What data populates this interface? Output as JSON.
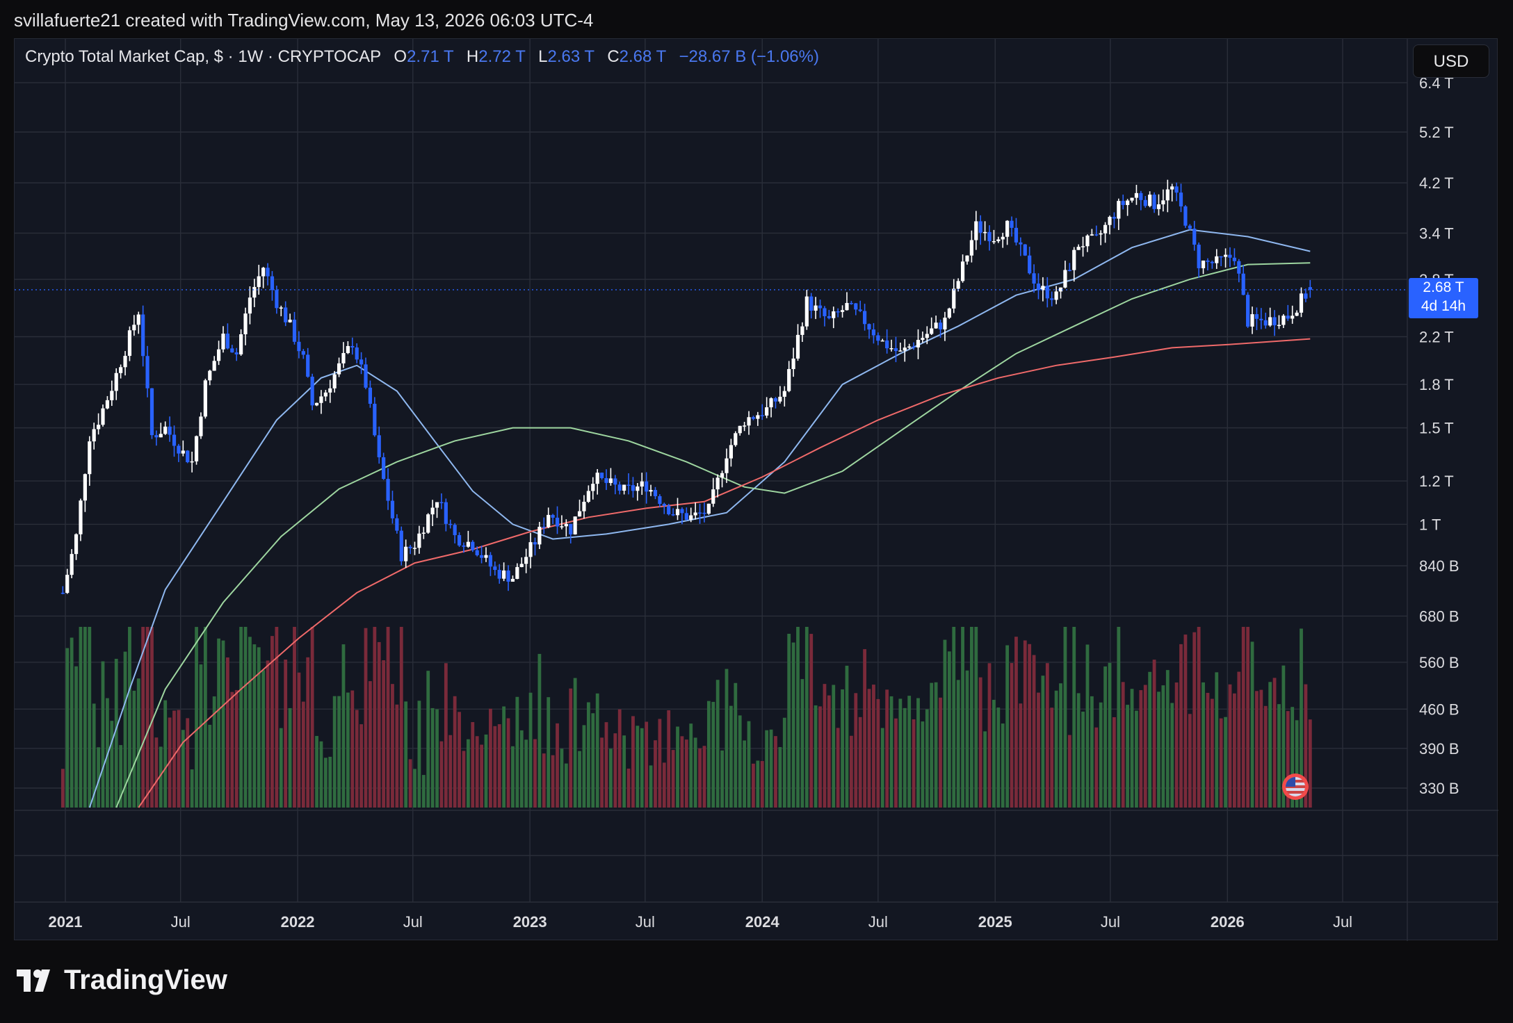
{
  "header": {
    "credit": "svillafuerte21 created with TradingView.com, May 13, 2026 06:03 UTC-4"
  },
  "legend": {
    "symbol": "Crypto Total Market Cap, $ · 1W · CRYPTOCAP",
    "open_label": "O",
    "open": "2.71 T",
    "high_label": "H",
    "high": "2.72 T",
    "low_label": "L",
    "low": "2.63 T",
    "close_label": "C",
    "close": "2.68 T",
    "change": "−28.67 B (−1.06%)"
  },
  "currency": "USD",
  "price_tag": {
    "value": "2.68 T",
    "countdown": "4d 14h"
  },
  "footer": {
    "brand": "TradingView"
  },
  "colors": {
    "up": "#ffffff",
    "down": "#2962ff",
    "ma_blue": "#8fb8f0",
    "ma_green": "#9ed6a0",
    "ma_red": "#f06a6a",
    "vol_up": "#2f6b3f",
    "vol_down": "#7a2a3a"
  },
  "chart_data": {
    "type": "candlestick",
    "interval": "1W",
    "y_scale": "log",
    "y_ticks": [
      "330 B",
      "390 B",
      "460 B",
      "560 B",
      "680 B",
      "840 B",
      "1 T",
      "1.2 T",
      "1.5 T",
      "1.8 T",
      "2.2 T",
      "2.8 T",
      "3.4 T",
      "4.2 T",
      "5.2 T",
      "6.4 T"
    ],
    "x_ticks": [
      "2021",
      "Jul",
      "2022",
      "Jul",
      "2023",
      "Jul",
      "2024",
      "Jul",
      "2025",
      "Jul",
      "2026",
      "Jul"
    ],
    "last_price": 2.68,
    "close_path": [
      [
        "2020-12-28",
        0.75
      ],
      [
        "2021-01-18",
        0.95
      ],
      [
        "2021-02-08",
        1.45
      ],
      [
        "2021-02-22",
        1.55
      ],
      [
        "2021-03-15",
        1.78
      ],
      [
        "2021-04-12",
        2.2
      ],
      [
        "2021-04-26",
        2.45
      ],
      [
        "2021-05-17",
        1.45
      ],
      [
        "2021-06-07",
        1.5
      ],
      [
        "2021-07-05",
        1.35
      ],
      [
        "2021-07-19",
        1.3
      ],
      [
        "2021-08-09",
        1.8
      ],
      [
        "2021-09-06",
        2.2
      ],
      [
        "2021-09-27",
        2.05
      ],
      [
        "2021-10-18",
        2.6
      ],
      [
        "2021-11-08",
        2.95
      ],
      [
        "2021-11-29",
        2.55
      ],
      [
        "2021-12-20",
        2.3
      ],
      [
        "2022-01-10",
        2.0
      ],
      [
        "2022-01-24",
        1.65
      ],
      [
        "2022-02-14",
        1.75
      ],
      [
        "2022-03-28",
        2.15
      ],
      [
        "2022-04-18",
        1.8
      ],
      [
        "2022-05-09",
        1.3
      ],
      [
        "2022-06-13",
        0.88
      ],
      [
        "2022-07-04",
        0.92
      ],
      [
        "2022-08-08",
        1.12
      ],
      [
        "2022-09-05",
        0.95
      ],
      [
        "2022-10-03",
        0.92
      ],
      [
        "2022-11-07",
        0.82
      ],
      [
        "2022-12-05",
        0.8
      ],
      [
        "2023-01-09",
        0.93
      ],
      [
        "2023-01-30",
        1.05
      ],
      [
        "2023-03-06",
        0.98
      ],
      [
        "2023-04-10",
        1.22
      ],
      [
        "2023-05-29",
        1.15
      ],
      [
        "2023-07-03",
        1.18
      ],
      [
        "2023-08-14",
        1.05
      ],
      [
        "2023-09-11",
        1.03
      ],
      [
        "2023-10-09",
        1.06
      ],
      [
        "2023-11-06",
        1.35
      ],
      [
        "2023-12-04",
        1.55
      ],
      [
        "2024-01-08",
        1.62
      ],
      [
        "2024-02-05",
        1.75
      ],
      [
        "2024-03-11",
        2.55
      ],
      [
        "2024-04-15",
        2.35
      ],
      [
        "2024-05-13",
        2.5
      ],
      [
        "2024-06-10",
        2.35
      ],
      [
        "2024-07-08",
        2.15
      ],
      [
        "2024-08-05",
        2.05
      ],
      [
        "2024-09-09",
        2.2
      ],
      [
        "2024-10-14",
        2.35
      ],
      [
        "2024-11-11",
        2.95
      ],
      [
        "2024-12-02",
        3.5
      ],
      [
        "2024-12-30",
        3.35
      ],
      [
        "2025-01-20",
        3.5
      ],
      [
        "2025-02-10",
        3.15
      ],
      [
        "2025-03-10",
        2.7
      ],
      [
        "2025-04-07",
        2.6
      ],
      [
        "2025-05-12",
        3.25
      ],
      [
        "2025-06-09",
        3.3
      ],
      [
        "2025-07-14",
        3.8
      ],
      [
        "2025-08-11",
        4.0
      ],
      [
        "2025-09-08",
        3.85
      ],
      [
        "2025-10-06",
        4.1
      ],
      [
        "2025-10-27",
        3.6
      ],
      [
        "2025-11-17",
        3.0
      ],
      [
        "2025-12-15",
        3.0
      ],
      [
        "2026-01-12",
        3.1
      ],
      [
        "2026-02-02",
        2.35
      ],
      [
        "2026-03-02",
        2.35
      ],
      [
        "2026-04-06",
        2.4
      ],
      [
        "2026-05-11",
        2.68
      ]
    ],
    "series": [
      {
        "name": "",
        "type": "ma",
        "color": "#8fb8f0",
        "points": [
          [
            "2021-02-08",
            0.3
          ],
          [
            "2021-04-12",
            0.5
          ],
          [
            "2021-06-07",
            0.76
          ],
          [
            "2021-09-06",
            1.1
          ],
          [
            "2021-11-29",
            1.55
          ],
          [
            "2022-02-07",
            1.85
          ],
          [
            "2022-04-04",
            1.95
          ],
          [
            "2022-06-06",
            1.75
          ],
          [
            "2022-08-08",
            1.4
          ],
          [
            "2022-10-03",
            1.15
          ],
          [
            "2022-12-05",
            1.0
          ],
          [
            "2023-02-06",
            0.94
          ],
          [
            "2023-05-01",
            0.96
          ],
          [
            "2023-08-07",
            1.0
          ],
          [
            "2023-11-06",
            1.05
          ],
          [
            "2024-02-05",
            1.3
          ],
          [
            "2024-05-06",
            1.8
          ],
          [
            "2024-08-05",
            2.05
          ],
          [
            "2024-11-04",
            2.3
          ],
          [
            "2025-02-03",
            2.62
          ],
          [
            "2025-05-05",
            2.8
          ],
          [
            "2025-08-04",
            3.2
          ],
          [
            "2025-11-03",
            3.45
          ],
          [
            "2026-02-02",
            3.35
          ],
          [
            "2026-05-11",
            3.15
          ]
        ]
      },
      {
        "name": "",
        "type": "ma",
        "color": "#9ed6a0",
        "points": [
          [
            "2021-03-22",
            0.3
          ],
          [
            "2021-06-07",
            0.5
          ],
          [
            "2021-09-06",
            0.72
          ],
          [
            "2021-12-06",
            0.95
          ],
          [
            "2022-03-07",
            1.16
          ],
          [
            "2022-06-06",
            1.3
          ],
          [
            "2022-09-05",
            1.42
          ],
          [
            "2022-12-05",
            1.5
          ],
          [
            "2023-03-06",
            1.5
          ],
          [
            "2023-06-05",
            1.42
          ],
          [
            "2023-09-04",
            1.3
          ],
          [
            "2023-12-04",
            1.17
          ],
          [
            "2024-02-05",
            1.14
          ],
          [
            "2024-05-06",
            1.25
          ],
          [
            "2024-08-05",
            1.48
          ],
          [
            "2024-11-04",
            1.75
          ],
          [
            "2025-02-03",
            2.05
          ],
          [
            "2025-05-05",
            2.3
          ],
          [
            "2025-08-04",
            2.58
          ],
          [
            "2025-11-03",
            2.8
          ],
          [
            "2026-02-02",
            2.98
          ],
          [
            "2026-05-11",
            3.0
          ]
        ]
      },
      {
        "name": "",
        "type": "ma",
        "color": "#f06a6a",
        "points": [
          [
            "2021-04-26",
            0.3
          ],
          [
            "2021-07-05",
            0.4
          ],
          [
            "2021-10-04",
            0.5
          ],
          [
            "2022-01-03",
            0.62
          ],
          [
            "2022-04-04",
            0.75
          ],
          [
            "2022-07-04",
            0.85
          ],
          [
            "2022-10-03",
            0.9
          ],
          [
            "2023-01-02",
            0.97
          ],
          [
            "2023-04-03",
            1.03
          ],
          [
            "2023-07-03",
            1.07
          ],
          [
            "2023-10-02",
            1.1
          ],
          [
            "2024-01-01",
            1.22
          ],
          [
            "2024-04-01",
            1.38
          ],
          [
            "2024-07-01",
            1.55
          ],
          [
            "2024-10-07",
            1.72
          ],
          [
            "2025-01-06",
            1.85
          ],
          [
            "2025-04-07",
            1.95
          ],
          [
            "2025-07-07",
            2.02
          ],
          [
            "2025-10-06",
            2.1
          ],
          [
            "2026-01-05",
            2.13
          ],
          [
            "2026-05-11",
            2.18
          ]
        ]
      }
    ]
  }
}
